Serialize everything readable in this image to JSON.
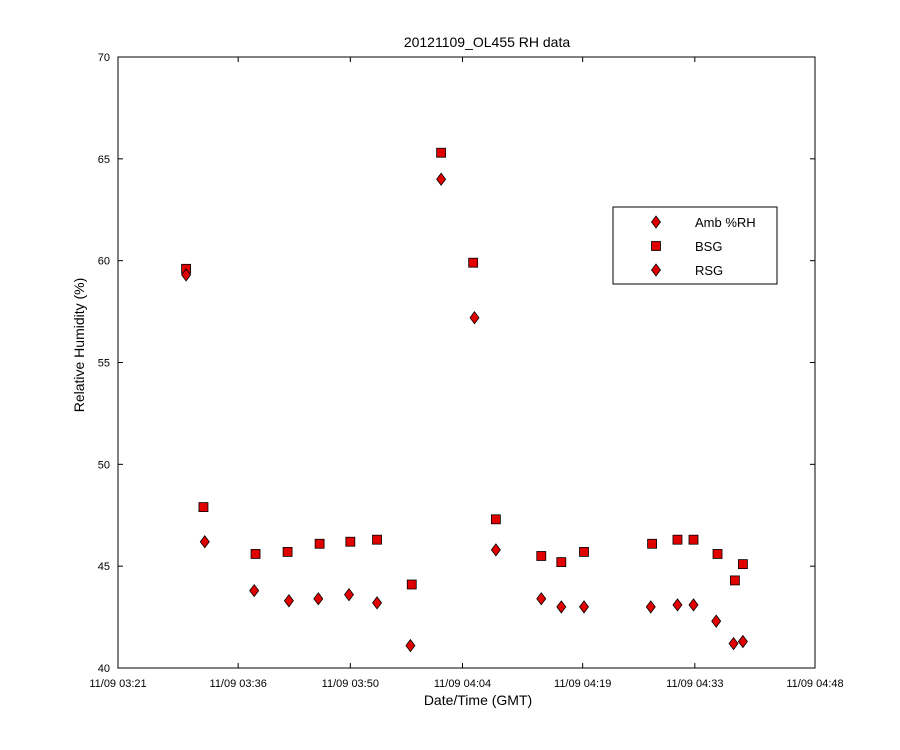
{
  "chart_data": {
    "type": "scatter",
    "title": "20121109_OL455 RH data",
    "xlabel": "Date/Time (GMT)",
    "ylabel": "Relative Humidity (%)",
    "xlim": [
      "11/09 03:21",
      "11/09 04:48"
    ],
    "ylim": [
      40,
      70
    ],
    "x_ticks": [
      "11/09 03:21",
      "11/09 03:36",
      "11/09 03:50",
      "11/09 04:04",
      "11/09 04:19",
      "11/09 04:33",
      "11/09 04:48"
    ],
    "y_ticks": [
      40,
      45,
      50,
      55,
      60,
      65,
      70
    ],
    "grid": false,
    "legend_position": "upper-right",
    "marker_color": "#e00000",
    "series": [
      {
        "name": "Amb %RH",
        "marker": "diamond",
        "points": []
      },
      {
        "name": "BSG",
        "marker": "square",
        "points": [
          {
            "x": "11/09 03:29:30",
            "y": 59.6
          },
          {
            "x": "11/09 03:31:40",
            "y": 47.9
          },
          {
            "x": "11/09 03:38:10",
            "y": 45.6
          },
          {
            "x": "11/09 03:42:10",
            "y": 45.7
          },
          {
            "x": "11/09 03:46:10",
            "y": 46.1
          },
          {
            "x": "11/09 03:50:00",
            "y": 46.2
          },
          {
            "x": "11/09 03:53:20",
            "y": 46.3
          },
          {
            "x": "11/09 03:57:40",
            "y": 44.1
          },
          {
            "x": "11/09 04:01:20",
            "y": 65.3
          },
          {
            "x": "11/09 04:05:20",
            "y": 59.9
          },
          {
            "x": "11/09 04:08:10",
            "y": 47.3
          },
          {
            "x": "11/09 04:13:50",
            "y": 45.5
          },
          {
            "x": "11/09 04:16:20",
            "y": 45.2
          },
          {
            "x": "11/09 04:19:10",
            "y": 45.7
          },
          {
            "x": "11/09 04:27:40",
            "y": 46.1
          },
          {
            "x": "11/09 04:30:50",
            "y": 46.3
          },
          {
            "x": "11/09 04:32:50",
            "y": 46.3
          },
          {
            "x": "11/09 04:35:50",
            "y": 45.6
          },
          {
            "x": "11/09 04:38:00",
            "y": 44.3
          },
          {
            "x": "11/09 04:39:00",
            "y": 45.1
          }
        ]
      },
      {
        "name": "RSG",
        "marker": "diamond",
        "points": [
          {
            "x": "11/09 03:29:30",
            "y": 59.3
          },
          {
            "x": "11/09 03:31:50",
            "y": 46.2
          },
          {
            "x": "11/09 03:38:00",
            "y": 43.8
          },
          {
            "x": "11/09 03:42:20",
            "y": 43.3
          },
          {
            "x": "11/09 03:46:00",
            "y": 43.4
          },
          {
            "x": "11/09 03:49:50",
            "y": 43.6
          },
          {
            "x": "11/09 03:53:20",
            "y": 43.2
          },
          {
            "x": "11/09 03:57:30",
            "y": 41.1
          },
          {
            "x": "11/09 04:01:20",
            "y": 64.0
          },
          {
            "x": "11/09 04:05:30",
            "y": 57.2
          },
          {
            "x": "11/09 04:08:10",
            "y": 45.8
          },
          {
            "x": "11/09 04:13:50",
            "y": 43.4
          },
          {
            "x": "11/09 04:16:20",
            "y": 43.0
          },
          {
            "x": "11/09 04:19:10",
            "y": 43.0
          },
          {
            "x": "11/09 04:27:30",
            "y": 43.0
          },
          {
            "x": "11/09 04:30:50",
            "y": 43.1
          },
          {
            "x": "11/09 04:32:50",
            "y": 43.1
          },
          {
            "x": "11/09 04:35:40",
            "y": 42.3
          },
          {
            "x": "11/09 04:37:50",
            "y": 41.2
          },
          {
            "x": "11/09 04:39:00",
            "y": 41.3
          }
        ]
      }
    ]
  }
}
